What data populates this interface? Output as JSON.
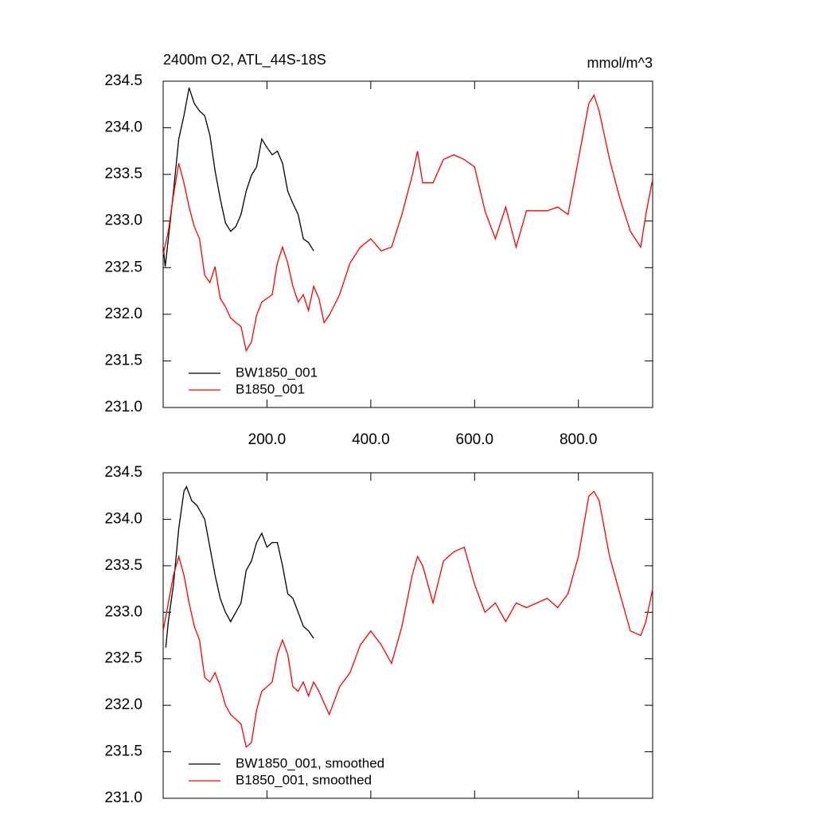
{
  "chart_data": [
    {
      "type": "line",
      "title": "2400m O2, ATL_44S-18S",
      "units": "mmol/m^3",
      "xlim": [
        0,
        943
      ],
      "ylim": [
        231.0,
        234.5
      ],
      "xticks": [
        {
          "value": 200,
          "label": "200.0"
        },
        {
          "value": 400,
          "label": "400.0"
        },
        {
          "value": 600,
          "label": "600.0"
        },
        {
          "value": 800,
          "label": "800.0"
        }
      ],
      "xtick_labels": true,
      "yticks": [
        {
          "value": 231,
          "label": "231.0"
        },
        231.5,
        {
          "value": 232,
          "label": "232.0"
        },
        232.5,
        {
          "value": 233,
          "label": "233.0"
        },
        233.5,
        {
          "value": 234,
          "label": "234.0"
        },
        234.5
      ],
      "legend": "lower left",
      "series": [
        {
          "name": "BW1850_001",
          "color": "#000000",
          "x": [
            0,
            4,
            10,
            20,
            30,
            40,
            50,
            60,
            70,
            80,
            90,
            100,
            110,
            120,
            130,
            140,
            150,
            160,
            170,
            180,
            190,
            200,
            210,
            220,
            230,
            240,
            250,
            260,
            270,
            280,
            290
          ],
          "values": [
            232.72,
            232.51,
            232.81,
            233.32,
            233.88,
            234.13,
            234.43,
            234.26,
            234.18,
            234.13,
            233.92,
            233.54,
            233.24,
            232.98,
            232.89,
            232.94,
            233.07,
            233.32,
            233.49,
            233.58,
            233.88,
            233.79,
            233.71,
            233.75,
            233.62,
            233.32,
            233.19,
            233.07,
            232.81,
            232.77,
            232.68
          ]
        },
        {
          "name": "B1850_001",
          "color": "#ff0000",
          "x": [
            0,
            10,
            20,
            30,
            40,
            50,
            60,
            70,
            80,
            90,
            100,
            110,
            120,
            130,
            140,
            150,
            160,
            170,
            180,
            190,
            200,
            210,
            220,
            230,
            240,
            250,
            260,
            270,
            280,
            290,
            300,
            310,
            320,
            340,
            360,
            380,
            400,
            420,
            440,
            460,
            480,
            490,
            500,
            520,
            540,
            560,
            580,
            600,
            620,
            640,
            660,
            680,
            700,
            720,
            740,
            760,
            780,
            800,
            820,
            830,
            840,
            860,
            880,
            900,
            920,
            930,
            943
          ],
          "values": [
            232.64,
            232.89,
            233.28,
            233.62,
            233.41,
            233.15,
            232.94,
            232.81,
            232.42,
            232.34,
            232.51,
            232.17,
            232.08,
            231.96,
            231.91,
            231.87,
            231.61,
            231.7,
            231.99,
            232.13,
            232.17,
            232.21,
            232.55,
            232.72,
            232.55,
            232.3,
            232.13,
            232.21,
            232.04,
            232.3,
            232.17,
            231.91,
            231.99,
            232.21,
            232.55,
            232.72,
            232.81,
            232.68,
            232.72,
            233.07,
            233.49,
            233.75,
            233.41,
            233.41,
            233.66,
            233.71,
            233.66,
            233.58,
            233.11,
            232.81,
            233.15,
            232.72,
            233.11,
            233.11,
            233.11,
            233.15,
            233.07,
            233.66,
            234.26,
            234.35,
            234.18,
            233.66,
            233.24,
            232.89,
            232.72,
            233.07,
            233.45
          ]
        }
      ]
    },
    {
      "type": "line",
      "xlim": [
        0,
        943
      ],
      "ylim": [
        231.0,
        234.5
      ],
      "xticks": [
        200,
        400,
        600,
        800
      ],
      "xtick_labels": false,
      "yticks": [
        {
          "value": 231,
          "label": "231.0"
        },
        231.5,
        {
          "value": 232,
          "label": "232.0"
        },
        232.5,
        {
          "value": 233,
          "label": "233.0"
        },
        233.5,
        {
          "value": 234,
          "label": "234.0"
        },
        234.5
      ],
      "legend": "lower left",
      "series": [
        {
          "name": "BW1850_001, smoothed",
          "color": "#000000",
          "x": [
            5,
            10,
            20,
            30,
            40,
            45,
            55,
            65,
            80,
            90,
            100,
            110,
            120,
            130,
            140,
            150,
            160,
            170,
            180,
            190,
            200,
            210,
            220,
            230,
            240,
            250,
            260,
            270,
            280,
            290
          ],
          "values": [
            232.62,
            232.9,
            233.3,
            233.9,
            234.3,
            234.35,
            234.2,
            234.15,
            234.0,
            233.7,
            233.4,
            233.15,
            233.0,
            232.9,
            233.0,
            233.1,
            233.45,
            233.55,
            233.75,
            233.85,
            233.7,
            233.75,
            233.75,
            233.5,
            233.2,
            233.15,
            233.0,
            232.85,
            232.8,
            232.72
          ]
        },
        {
          "name": "B1850_001, smoothed",
          "color": "#ff0000",
          "x": [
            0,
            10,
            20,
            30,
            40,
            50,
            60,
            70,
            80,
            90,
            100,
            110,
            120,
            130,
            140,
            150,
            160,
            170,
            180,
            190,
            200,
            210,
            220,
            230,
            240,
            250,
            260,
            270,
            280,
            290,
            300,
            320,
            340,
            360,
            380,
            400,
            420,
            440,
            460,
            480,
            490,
            500,
            520,
            540,
            560,
            580,
            600,
            620,
            640,
            660,
            680,
            700,
            720,
            740,
            760,
            780,
            800,
            820,
            830,
            840,
            860,
            880,
            900,
            920,
            930,
            943
          ],
          "values": [
            232.8,
            233.1,
            233.4,
            233.6,
            233.4,
            233.1,
            232.85,
            232.7,
            232.3,
            232.25,
            232.35,
            232.2,
            232.0,
            231.9,
            231.85,
            231.8,
            231.55,
            231.6,
            231.95,
            232.15,
            232.2,
            232.25,
            232.55,
            232.7,
            232.55,
            232.2,
            232.15,
            232.25,
            232.1,
            232.25,
            232.15,
            231.9,
            232.2,
            232.35,
            232.65,
            232.8,
            232.65,
            232.45,
            232.85,
            233.4,
            233.6,
            233.5,
            233.1,
            233.55,
            233.65,
            233.7,
            233.3,
            233.0,
            233.1,
            232.9,
            233.1,
            233.05,
            233.1,
            233.15,
            233.05,
            233.2,
            233.6,
            234.25,
            234.3,
            234.2,
            233.6,
            233.2,
            232.8,
            232.75,
            232.9,
            233.25
          ]
        }
      ]
    }
  ]
}
